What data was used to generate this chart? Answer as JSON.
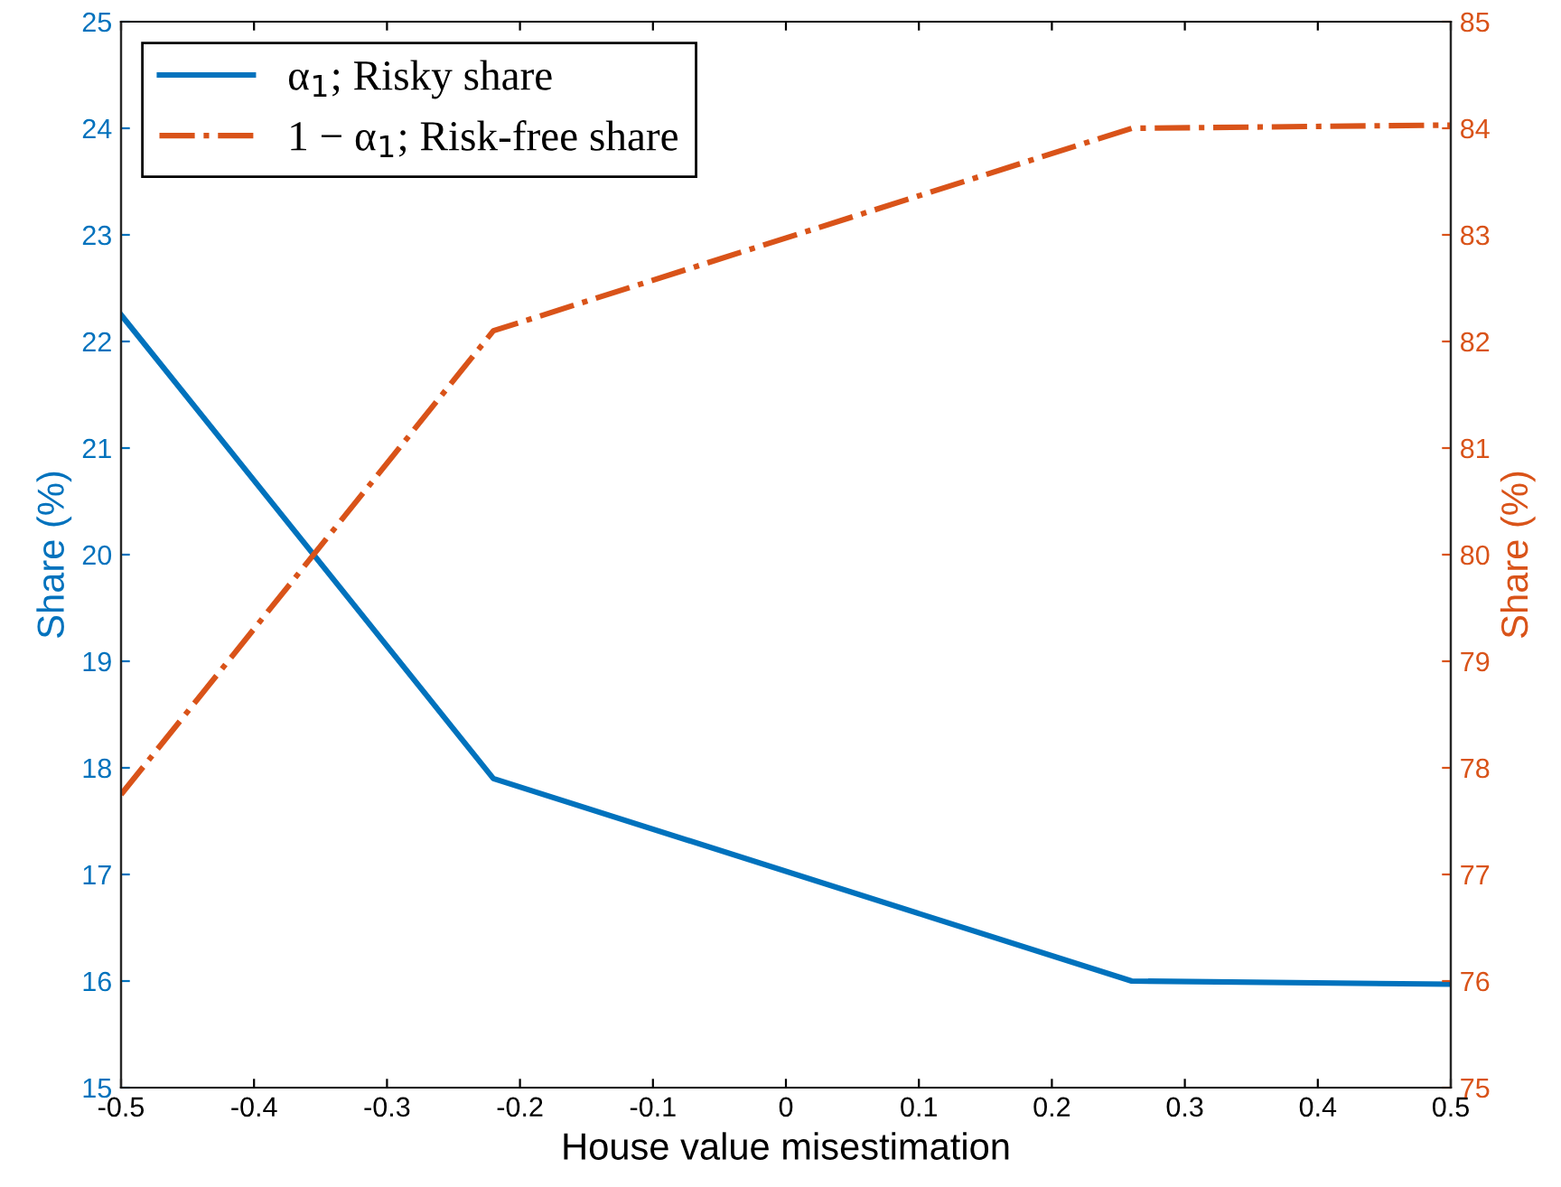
{
  "chart_data": {
    "type": "line",
    "xlabel": "House value misestimation",
    "ylabel": "Share (%)",
    "y2label": "Share (%)",
    "x": [
      -0.5,
      -0.22,
      0.26,
      0.5
    ],
    "series": [
      {
        "name": "α$_{1}$; Risky share",
        "color": "#0072bd",
        "values": [
          22.25,
          17.9,
          16.0,
          15.97
        ],
        "line_style": "solid"
      },
      {
        "name": "1 − α$_{1}$; Risk-free share",
        "color": "#d95319",
        "values": [
          77.75,
          82.1,
          84.0,
          84.03
        ],
        "axis": "y2",
        "line_style": "dashdot"
      }
    ],
    "xlim": [
      -0.5,
      0.5
    ],
    "xticks": [
      -0.5,
      -0.4,
      -0.3,
      -0.2,
      -0.1,
      0,
      0.1,
      0.2,
      0.3,
      0.4,
      0.5
    ],
    "ylim": [
      15,
      25
    ],
    "yticks": [
      15,
      16,
      17,
      18,
      19,
      20,
      21,
      22,
      23,
      24,
      25
    ],
    "y2lim": [
      75,
      85
    ],
    "y2ticks": [
      75,
      76,
      77,
      78,
      79,
      80,
      81,
      82,
      83,
      84,
      85
    ],
    "grid": false,
    "legend": "top left"
  }
}
